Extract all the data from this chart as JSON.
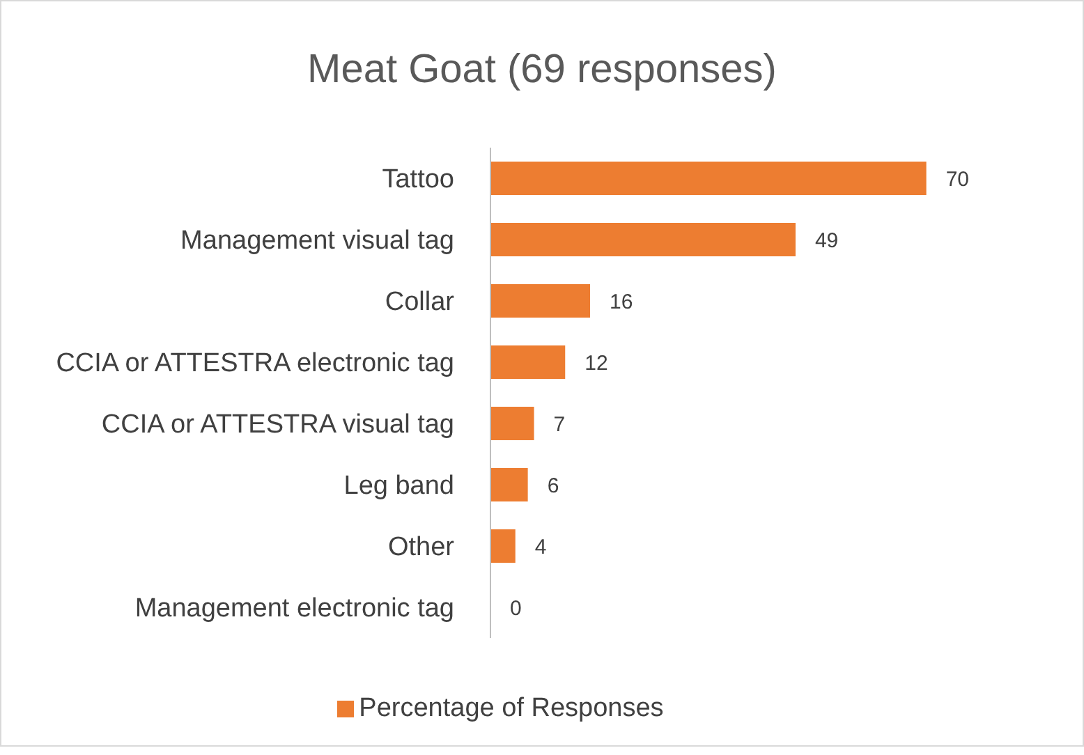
{
  "chart_data": {
    "type": "bar",
    "orientation": "horizontal",
    "title": "Meat Goat (69 responses)",
    "categories": [
      "Tattoo",
      "Management visual tag",
      "Collar",
      "CCIA or ATTESTRA electronic tag",
      "CCIA or ATTESTRA visual tag",
      "Leg band",
      "Other",
      "Management electronic tag"
    ],
    "series": [
      {
        "name": "Percentage of Responses",
        "color": "#ed7d31",
        "values": [
          70,
          49,
          16,
          12,
          7,
          6,
          4,
          0
        ]
      }
    ],
    "data_labels": true,
    "legend": "bottom",
    "grid": false
  }
}
